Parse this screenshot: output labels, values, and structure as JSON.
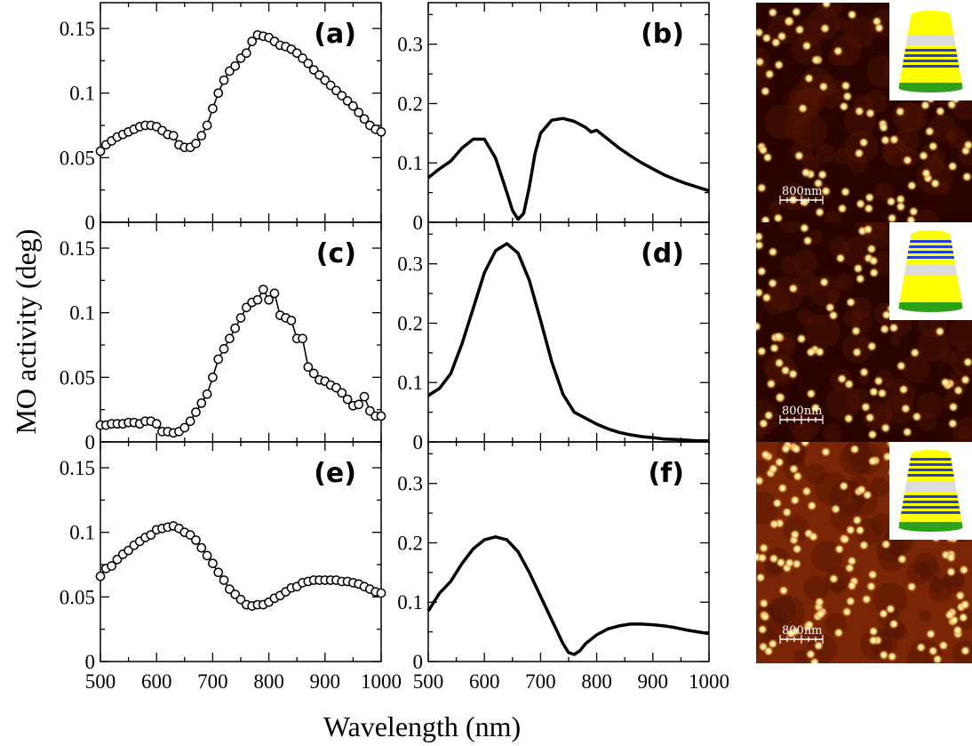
{
  "figure": {
    "ylabel": "MO activity (deg)",
    "xlabel": "Wavelength (nm)",
    "scale_bar_text": "800nm"
  },
  "colors": {
    "afm_dark": "#2a0500",
    "afm_mid": "#7a2606",
    "afm_dot": "#fff2b0",
    "cone_yellow": "#ffff00",
    "cone_gray": "#dcdcdc",
    "cone_blue": "#1f3fd8",
    "cone_green": "#2ea11c"
  },
  "images": [
    {
      "name": "afm-image-top",
      "description_icon": "afm-topography",
      "cone_layers": "bottom-multilayer"
    },
    {
      "name": "afm-image-middle",
      "description_icon": "afm-topography",
      "cone_layers": "top-multilayer"
    },
    {
      "name": "afm-image-bottom",
      "description_icon": "afm-topography",
      "cone_layers": "both-multilayer"
    }
  ],
  "chart_data": [
    {
      "panel": "(a)",
      "type": "line",
      "markers": "open-circle",
      "xlim": [
        500,
        1000
      ],
      "ylim": [
        0,
        0.17
      ],
      "xticks": [
        500,
        600,
        700,
        800,
        900,
        1000
      ],
      "yticks": [
        0,
        0.05,
        0.1,
        0.15
      ],
      "ytick_labels": [
        "0",
        "0.05",
        "0.1",
        "0.15"
      ],
      "series": [
        {
          "x": [
            500,
            510,
            520,
            530,
            540,
            550,
            560,
            570,
            580,
            590,
            600,
            610,
            620,
            630,
            640,
            650,
            660,
            670,
            680,
            690,
            700,
            710,
            720,
            730,
            740,
            750,
            760,
            770,
            780,
            790,
            800,
            810,
            820,
            830,
            840,
            850,
            860,
            870,
            880,
            890,
            900,
            910,
            920,
            930,
            940,
            950,
            960,
            970,
            980,
            990,
            1000
          ],
          "y": [
            0.055,
            0.06,
            0.063,
            0.066,
            0.068,
            0.07,
            0.072,
            0.074,
            0.075,
            0.075,
            0.074,
            0.071,
            0.068,
            0.067,
            0.06,
            0.058,
            0.058,
            0.061,
            0.067,
            0.075,
            0.088,
            0.1,
            0.11,
            0.117,
            0.121,
            0.127,
            0.131,
            0.14,
            0.145,
            0.144,
            0.143,
            0.14,
            0.137,
            0.136,
            0.134,
            0.131,
            0.127,
            0.123,
            0.118,
            0.114,
            0.11,
            0.106,
            0.102,
            0.098,
            0.094,
            0.09,
            0.085,
            0.08,
            0.075,
            0.072,
            0.07
          ]
        }
      ]
    },
    {
      "panel": "(b)",
      "type": "line",
      "markers": "none",
      "xlim": [
        500,
        1000
      ],
      "ylim": [
        0,
        0.37
      ],
      "xticks": [
        500,
        600,
        700,
        800,
        900,
        1000
      ],
      "yticks": [
        0,
        0.1,
        0.2,
        0.3
      ],
      "ytick_labels": [
        "0",
        "0.1",
        "0.2",
        "0.3"
      ],
      "series": [
        {
          "x": [
            500,
            520,
            540,
            560,
            580,
            600,
            620,
            640,
            650,
            660,
            670,
            680,
            690,
            700,
            720,
            740,
            760,
            780,
            790,
            800,
            820,
            840,
            860,
            880,
            900,
            920,
            940,
            960,
            980,
            1000
          ],
          "y": [
            0.075,
            0.09,
            0.103,
            0.125,
            0.14,
            0.14,
            0.108,
            0.05,
            0.02,
            0.005,
            0.015,
            0.06,
            0.115,
            0.15,
            0.172,
            0.175,
            0.17,
            0.16,
            0.152,
            0.155,
            0.14,
            0.125,
            0.112,
            0.1,
            0.09,
            0.08,
            0.072,
            0.065,
            0.059,
            0.053
          ]
        }
      ]
    },
    {
      "panel": "(c)",
      "type": "line",
      "markers": "open-circle",
      "xlim": [
        500,
        1000
      ],
      "ylim": [
        0,
        0.17
      ],
      "xticks": [
        500,
        600,
        700,
        800,
        900,
        1000
      ],
      "yticks": [
        0,
        0.05,
        0.1,
        0.15
      ],
      "ytick_labels": [
        "0",
        "0.05",
        "0.1",
        "0.15"
      ],
      "series": [
        {
          "x": [
            500,
            510,
            520,
            530,
            540,
            550,
            560,
            570,
            580,
            590,
            600,
            610,
            620,
            630,
            640,
            650,
            660,
            670,
            680,
            690,
            700,
            710,
            720,
            730,
            740,
            750,
            760,
            770,
            780,
            790,
            800,
            810,
            820,
            830,
            840,
            850,
            860,
            870,
            880,
            890,
            900,
            910,
            920,
            930,
            940,
            950,
            960,
            970,
            980,
            990,
            1000
          ],
          "y": [
            0.013,
            0.013,
            0.014,
            0.014,
            0.014,
            0.015,
            0.015,
            0.014,
            0.016,
            0.016,
            0.014,
            0.008,
            0.008,
            0.007,
            0.008,
            0.011,
            0.016,
            0.023,
            0.03,
            0.037,
            0.05,
            0.064,
            0.072,
            0.08,
            0.088,
            0.096,
            0.104,
            0.108,
            0.11,
            0.118,
            0.11,
            0.115,
            0.098,
            0.096,
            0.094,
            0.08,
            0.08,
            0.058,
            0.053,
            0.048,
            0.047,
            0.044,
            0.042,
            0.038,
            0.033,
            0.028,
            0.029,
            0.035,
            0.024,
            0.02,
            0.02
          ]
        }
      ]
    },
    {
      "panel": "(d)",
      "type": "line",
      "markers": "none",
      "xlim": [
        500,
        1000
      ],
      "ylim": [
        0,
        0.37
      ],
      "xticks": [
        500,
        600,
        700,
        800,
        900,
        1000
      ],
      "yticks": [
        0,
        0.1,
        0.2,
        0.3
      ],
      "ytick_labels": [
        "0",
        "0.1",
        "0.2",
        "0.3"
      ],
      "series": [
        {
          "x": [
            500,
            520,
            540,
            560,
            580,
            600,
            620,
            640,
            660,
            680,
            700,
            720,
            740,
            760,
            780,
            800,
            820,
            840,
            860,
            880,
            900,
            920,
            940,
            960,
            980,
            1000
          ],
          "y": [
            0.078,
            0.09,
            0.115,
            0.165,
            0.225,
            0.285,
            0.322,
            0.334,
            0.318,
            0.272,
            0.205,
            0.135,
            0.08,
            0.05,
            0.04,
            0.03,
            0.022,
            0.016,
            0.012,
            0.009,
            0.007,
            0.005,
            0.004,
            0.003,
            0.002,
            0.002
          ]
        }
      ]
    },
    {
      "panel": "(e)",
      "type": "line",
      "markers": "open-circle",
      "xlim": [
        500,
        1000
      ],
      "ylim": [
        0,
        0.17
      ],
      "xticks": [
        500,
        600,
        700,
        800,
        900,
        1000
      ],
      "yticks": [
        0,
        0.05,
        0.1,
        0.15
      ],
      "ytick_labels": [
        "0",
        "0.05",
        "0.1",
        "0.15"
      ],
      "series": [
        {
          "x": [
            500,
            510,
            520,
            530,
            540,
            550,
            560,
            570,
            580,
            590,
            600,
            610,
            620,
            630,
            640,
            650,
            660,
            670,
            680,
            690,
            700,
            710,
            720,
            730,
            740,
            750,
            760,
            770,
            780,
            790,
            800,
            810,
            820,
            830,
            840,
            850,
            860,
            870,
            880,
            890,
            900,
            910,
            920,
            930,
            940,
            950,
            960,
            970,
            980,
            990,
            1000
          ],
          "y": [
            0.066,
            0.072,
            0.074,
            0.079,
            0.083,
            0.086,
            0.09,
            0.093,
            0.096,
            0.098,
            0.102,
            0.103,
            0.104,
            0.105,
            0.103,
            0.1,
            0.098,
            0.094,
            0.088,
            0.082,
            0.076,
            0.069,
            0.063,
            0.056,
            0.052,
            0.048,
            0.044,
            0.043,
            0.044,
            0.044,
            0.046,
            0.049,
            0.051,
            0.054,
            0.057,
            0.058,
            0.061,
            0.062,
            0.063,
            0.063,
            0.063,
            0.063,
            0.063,
            0.062,
            0.062,
            0.061,
            0.06,
            0.058,
            0.056,
            0.054,
            0.053
          ]
        }
      ]
    },
    {
      "panel": "(f)",
      "type": "line",
      "markers": "none",
      "xlim": [
        500,
        1000
      ],
      "ylim": [
        0,
        0.37
      ],
      "xticks": [
        500,
        600,
        700,
        800,
        900,
        1000
      ],
      "yticks": [
        0,
        0.1,
        0.2,
        0.3
      ],
      "ytick_labels": [
        "0",
        "0.1",
        "0.2",
        "0.3"
      ],
      "series": [
        {
          "x": [
            500,
            520,
            540,
            560,
            580,
            600,
            620,
            640,
            660,
            680,
            700,
            720,
            740,
            750,
            760,
            770,
            780,
            800,
            820,
            840,
            860,
            880,
            900,
            920,
            940,
            960,
            980,
            1000
          ],
          "y": [
            0.085,
            0.115,
            0.135,
            0.165,
            0.19,
            0.205,
            0.21,
            0.205,
            0.185,
            0.15,
            0.11,
            0.07,
            0.03,
            0.015,
            0.012,
            0.018,
            0.03,
            0.045,
            0.055,
            0.06,
            0.063,
            0.063,
            0.062,
            0.06,
            0.057,
            0.053,
            0.05,
            0.047
          ]
        }
      ]
    }
  ]
}
